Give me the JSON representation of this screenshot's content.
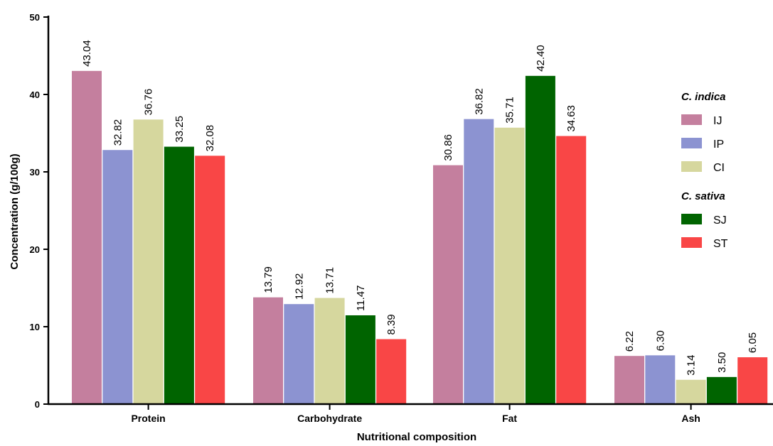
{
  "chart_data": {
    "type": "bar",
    "categories": [
      "Protein",
      "Carbohydrate",
      "Fat",
      "Ash"
    ],
    "series": [
      {
        "name": "IJ",
        "color": "#c47f9e",
        "values": [
          43.04,
          13.79,
          30.86,
          6.22
        ],
        "labels": [
          "43.04",
          "13.79",
          "30.86",
          "6.22"
        ]
      },
      {
        "name": "IP",
        "color": "#8c93d1",
        "values": [
          32.82,
          12.92,
          36.82,
          6.3
        ],
        "labels": [
          "32.82",
          "12.92",
          "36.82",
          "6.30"
        ]
      },
      {
        "name": "CI",
        "color": "#d6d79e",
        "values": [
          36.76,
          13.71,
          35.71,
          3.14
        ],
        "labels": [
          "36.76",
          "13.71",
          "35.71",
          "3.14"
        ]
      },
      {
        "name": "SJ",
        "color": "#006400",
        "values": [
          33.25,
          11.47,
          42.4,
          3.5
        ],
        "labels": [
          "33.25",
          "11.47",
          "42.40",
          "3.50"
        ]
      },
      {
        "name": "ST",
        "color": "#f94646",
        "values": [
          32.08,
          8.39,
          34.63,
          6.05
        ],
        "labels": [
          "32.08",
          "8.39",
          "34.63",
          "6.05"
        ]
      }
    ],
    "legend_groups": [
      {
        "title": "C. indica",
        "series": [
          "IJ",
          "IP",
          "CI"
        ]
      },
      {
        "title": "C. sativa",
        "series": [
          "SJ",
          "ST"
        ]
      }
    ],
    "xlabel": "Nutritional composition",
    "ylabel": "Concentration (g/100g)",
    "ylim": [
      0,
      50
    ],
    "yticks": [
      0,
      10,
      20,
      30,
      40,
      50
    ],
    "grid": false,
    "legend_position": "right"
  }
}
